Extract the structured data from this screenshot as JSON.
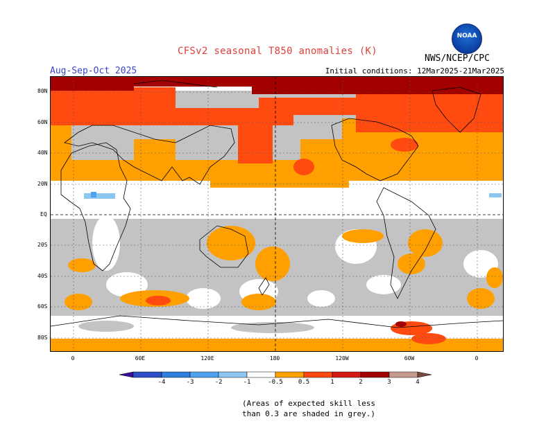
{
  "header": {
    "title": "CFSv2 seasonal T850 anomalies (K)",
    "org": "NWS/NCEP/CPC",
    "period": "Aug-Sep-Oct 2025",
    "initial_conditions": "Initial conditions: 12Mar2025-21Mar2025",
    "logo_text": "NOAA"
  },
  "map": {
    "lat_labels": [
      "80N",
      "60N",
      "40N",
      "20N",
      "EQ",
      "20S",
      "40S",
      "60S",
      "80S"
    ],
    "lon_labels": [
      "0",
      "60E",
      "120E",
      "180",
      "120W",
      "60W",
      "0"
    ]
  },
  "colorbar": {
    "labels": [
      "-4",
      "-3",
      "-2",
      "-1",
      "-0.5",
      "0.5",
      "1",
      "2",
      "3",
      "4"
    ],
    "colors": [
      "#3a0f9a",
      "#2e4fc7",
      "#2f7ee0",
      "#4fa3ee",
      "#8cc7f3",
      "#ffffff",
      "#ffa000",
      "#ff4a10",
      "#d41a12",
      "#a30000",
      "#c89a8e",
      "#7a4a40"
    ]
  },
  "notes": {
    "line1": "(Areas of expected skill less",
    "line2": "than 0.3 are shaded in grey.)"
  }
}
